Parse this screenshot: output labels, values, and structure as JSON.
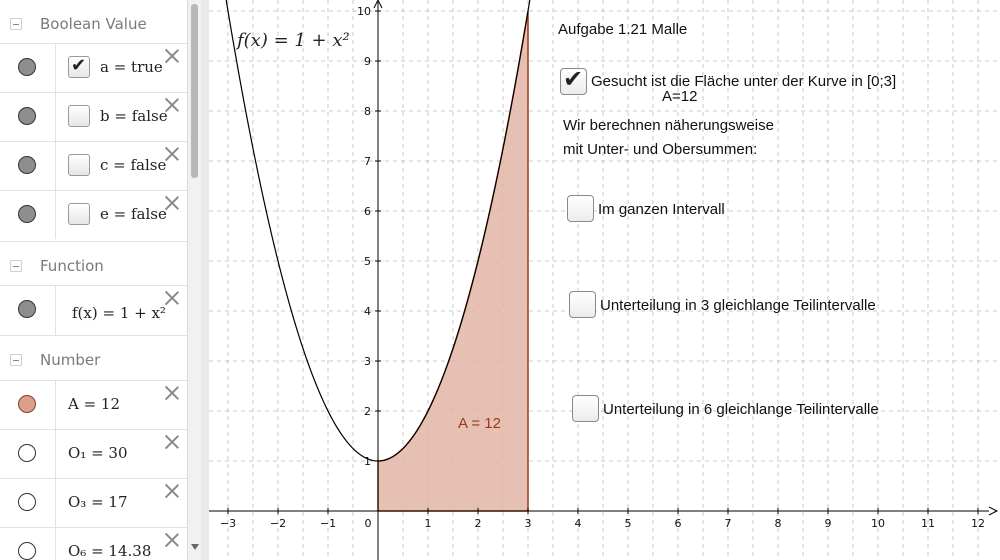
{
  "algebra": {
    "categories": [
      {
        "label": "Boolean Value"
      },
      {
        "label": "Function"
      },
      {
        "label": "Number"
      }
    ],
    "boolean_rows": [
      {
        "text": "a = true",
        "checked": true
      },
      {
        "text": "b = false",
        "checked": false
      },
      {
        "text": "c = false",
        "checked": false
      },
      {
        "text": "e = false",
        "checked": false
      }
    ],
    "function_rows": [
      {
        "text": "f(x) = 1 + x²"
      }
    ],
    "number_rows": [
      {
        "text": "A = 12"
      },
      {
        "text": "O₁ = 30"
      },
      {
        "text": "O₃ = 17"
      },
      {
        "text": "O₆ = 14.38"
      }
    ]
  },
  "graphics": {
    "title": "Aufgabe 1.21 Malle",
    "function_label": "f(x) = 1 + x²",
    "area_label": "A = 12",
    "checkbox_main": {
      "label": "Gesucht ist die Fläche unter der Kurve in [0;3]",
      "checked": true
    },
    "area_value_text": "A=12",
    "description_line1": "Wir berechnen näherungsweise",
    "description_line2": "mit Unter- und Obersummen:",
    "options": [
      {
        "label": "Im ganzen Intervall",
        "checked": false
      },
      {
        "label": "Unterteilung in 3 gleichlange Teilintervalle",
        "checked": false
      },
      {
        "label": "Unterteilung in 6 gleichlange Teilintervalle",
        "checked": false
      }
    ],
    "x_ticks": [
      "−3",
      "−2",
      "−1",
      "0",
      "1",
      "2",
      "3",
      "4",
      "5",
      "6",
      "7",
      "8",
      "9",
      "10",
      "11",
      "12"
    ],
    "y_ticks": [
      "1",
      "2",
      "3",
      "4",
      "5",
      "6",
      "7",
      "8",
      "9",
      "10"
    ],
    "colors": {
      "area_fill": "#e2b6a6",
      "area_stroke": "#9b3a14",
      "grid": "#c8c8c8",
      "curve": "#000000"
    }
  },
  "chart_data": {
    "type": "line",
    "series": [
      {
        "name": "f(x) = 1 + x²"
      }
    ],
    "x": [
      -3,
      -2,
      -1,
      0,
      1,
      2,
      3
    ],
    "y": [
      10,
      5,
      2,
      1,
      2,
      5,
      10
    ],
    "shaded_interval": [
      0,
      3
    ],
    "xlim": [
      -3,
      12
    ],
    "ylim": [
      0,
      10
    ]
  }
}
